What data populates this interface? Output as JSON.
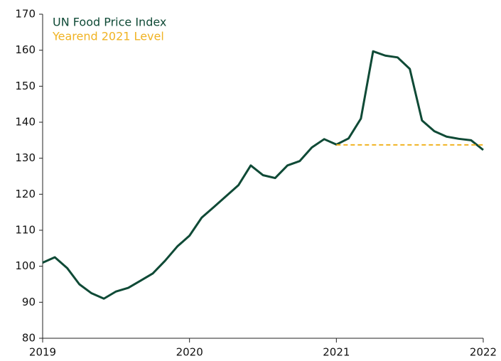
{
  "chart_data": {
    "type": "line",
    "xlim": [
      2019,
      2022
    ],
    "xticks": [
      2019,
      2020,
      2021,
      2022
    ],
    "ylim": [
      80,
      170
    ],
    "yticks": [
      80,
      90,
      100,
      110,
      120,
      130,
      140,
      150,
      160,
      170
    ],
    "legend": "top-left",
    "series": [
      {
        "name": "UN Food Price Index",
        "color": "#0f4a36",
        "dash": false,
        "x": [
          2019,
          2019.083,
          2019.167,
          2019.25,
          2019.333,
          2019.417,
          2019.5,
          2019.583,
          2019.667,
          2019.75,
          2019.833,
          2019.917,
          2020,
          2020.083,
          2020.167,
          2020.25,
          2020.333,
          2020.417,
          2020.5,
          2020.583,
          2020.667,
          2020.75,
          2020.833,
          2020.917,
          2021,
          2021.083,
          2021.167,
          2021.25,
          2021.333,
          2021.417,
          2021.5,
          2021.583,
          2021.667,
          2021.75,
          2021.833,
          2021.917,
          2022
        ],
        "values": [
          101,
          102.5,
          99.5,
          95,
          92.5,
          91,
          93,
          94,
          96,
          98,
          101.5,
          105.5,
          108.5,
          113.5,
          116.5,
          119.5,
          122.5,
          128,
          125.3,
          124.5,
          128,
          129.2,
          133,
          135.3,
          133.8,
          135.5,
          141,
          159.7,
          158.5,
          158,
          154.8,
          140.5,
          137.5,
          136,
          135.4,
          135,
          132.3
        ]
      },
      {
        "name": "Yearend 2021 Level",
        "color": "#f0b323",
        "dash": true,
        "x": [
          2021,
          2022
        ],
        "values": [
          133.7,
          133.7
        ]
      }
    ]
  }
}
